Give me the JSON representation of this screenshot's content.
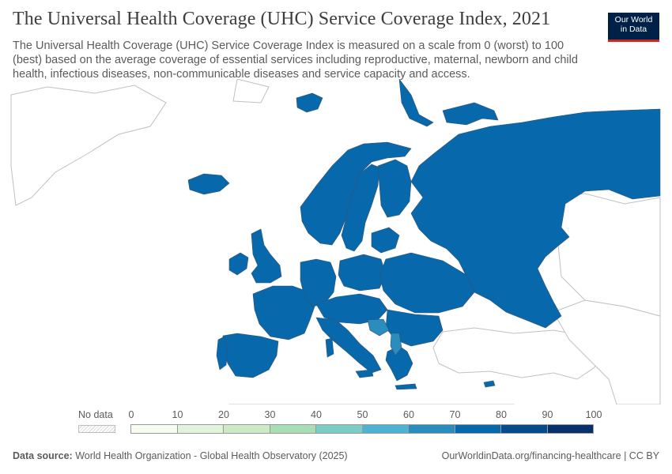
{
  "header": {
    "title": "The Universal Health Coverage (UHC) Service Coverage Index, 2021",
    "subtitle": "The Universal Health Coverage (UHC) Service Coverage Index is measured on a scale from 0 (worst) to 100 (best) based on the average coverage of essential services including reproductive, maternal, newborn and child health, infectious diseases, non-communicable diseases and service capacity and access."
  },
  "logo": {
    "line1": "Our World",
    "line2": "in Data",
    "bg_color": "#002147",
    "accent_color": "#ce261e"
  },
  "legend": {
    "nodata_label": "No data",
    "ticks": [
      "0",
      "10",
      "20",
      "30",
      "40",
      "50",
      "60",
      "70",
      "80",
      "90",
      "100"
    ],
    "bin_colors": [
      "#f7fcf0",
      "#e0f3db",
      "#ccebc5",
      "#a8ddb5",
      "#7bccc4",
      "#4eb3d3",
      "#2b8cbe",
      "#0868ac",
      "#084b8a",
      "#08306b"
    ]
  },
  "map": {
    "region": "Europe",
    "countries": [
      {
        "name": "Russia",
        "value": 75
      },
      {
        "name": "Norway",
        "value": 75
      },
      {
        "name": "Sweden",
        "value": 75
      },
      {
        "name": "Finland",
        "value": 75
      },
      {
        "name": "Iceland",
        "value": 75
      },
      {
        "name": "United Kingdom",
        "value": 75
      },
      {
        "name": "Ireland",
        "value": 75
      },
      {
        "name": "France",
        "value": 75
      },
      {
        "name": "Spain",
        "value": 75
      },
      {
        "name": "Portugal",
        "value": 75
      },
      {
        "name": "Italy",
        "value": 75
      },
      {
        "name": "Germany",
        "value": 75
      },
      {
        "name": "Poland",
        "value": 75
      },
      {
        "name": "Ukraine",
        "value": 75
      },
      {
        "name": "Romania",
        "value": 75
      },
      {
        "name": "Greece",
        "value": 75
      },
      {
        "name": "Bosnia and Herzegovina",
        "value": 65
      },
      {
        "name": "Montenegro",
        "value": 65
      }
    ],
    "land_color": "#ffffff",
    "border_color": "#c0c0c0",
    "country_border_color": "#37546e"
  },
  "footer": {
    "source_label": "Data source:",
    "source_text": "World Health Organization - Global Health Observatory (2025)",
    "url_text": "OurWorldinData.org/financing-healthcare | CC BY"
  }
}
